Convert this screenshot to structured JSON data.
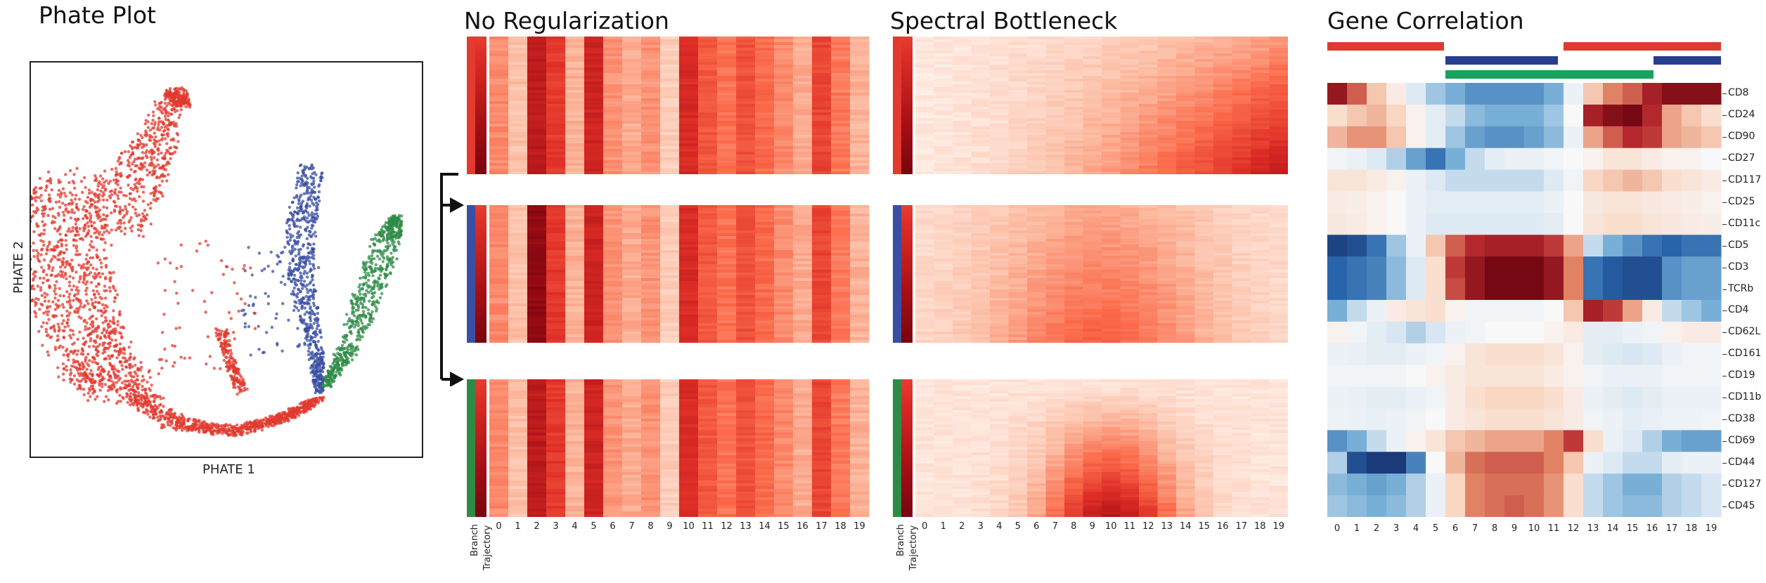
{
  "panels": {
    "phate": {
      "title": "Phate Plot",
      "xlabel": "PHATE 1",
      "ylabel": "PHATE 2"
    },
    "no_reg": {
      "title": "No Regularization"
    },
    "spectral": {
      "title": "Spectral Bottleneck"
    },
    "gene_corr": {
      "title": "Gene Correlation"
    }
  },
  "side_labels": [
    "Branch",
    "Trajectory"
  ],
  "x_ticks": [
    "0",
    "1",
    "2",
    "3",
    "4",
    "5",
    "6",
    "7",
    "8",
    "9",
    "10",
    "11",
    "12",
    "13",
    "14",
    "15",
    "16",
    "17",
    "18",
    "19"
  ],
  "genes": [
    "CD8",
    "CD24",
    "CD90",
    "CD27",
    "CD117",
    "CD25",
    "CD11c",
    "CD5",
    "CD3",
    "TCRb",
    "CD4",
    "CD62L",
    "CD161",
    "CD19",
    "CD11b",
    "CD38",
    "CD69",
    "CD44",
    "CD127",
    "CD45"
  ],
  "colors": {
    "red_branch": "#e23a2f",
    "blue_branch": "#3a4fa3",
    "green_branch": "#2e8b45",
    "bar_green": "#17a35c",
    "bar_red": "#dc3b33",
    "bar_blue": "#283e8e"
  },
  "branch_order": [
    "red",
    "blue",
    "green"
  ]
}
